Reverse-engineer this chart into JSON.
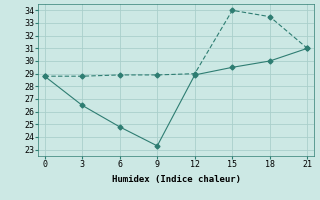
{
  "xlabel": "Humidex (Indice chaleur)",
  "line1_x": [
    0,
    3,
    6,
    9,
    12,
    15,
    18,
    21
  ],
  "line1_y": [
    28.8,
    28.8,
    28.9,
    28.9,
    29.0,
    34.0,
    33.5,
    31.0
  ],
  "line2_x": [
    0,
    3,
    6,
    9,
    12,
    15,
    18,
    21
  ],
  "line2_y": [
    28.8,
    26.5,
    24.8,
    23.3,
    28.9,
    29.5,
    30.0,
    31.0
  ],
  "line_color": "#2e7d72",
  "bg_color": "#cce8e4",
  "grid_color": "#aacfcb",
  "marker": "D",
  "marker_size": 2.5,
  "xlim": [
    -0.5,
    21.5
  ],
  "ylim": [
    22.5,
    34.5
  ],
  "xticks": [
    0,
    3,
    6,
    9,
    12,
    15,
    18,
    21
  ],
  "yticks": [
    23,
    24,
    25,
    26,
    27,
    28,
    29,
    30,
    31,
    32,
    33,
    34
  ]
}
